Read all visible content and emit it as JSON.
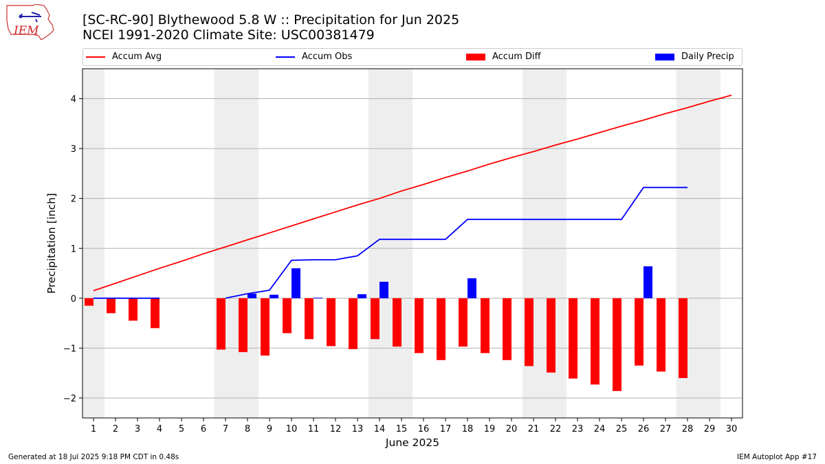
{
  "header": {
    "title_line1": "[SC-RC-90] Blythewood 5.8 W :: Precipitation for Jun 2025",
    "title_line2": "NCEI 1991-2020 Climate Site: USC00381479",
    "logo_text": "IEM"
  },
  "footer": {
    "left": "Generated at 18 Jul 2025 9:18 PM CDT in 0.48s",
    "right": "IEM Autoplot App #17"
  },
  "legend": [
    {
      "name": "Accum Avg",
      "kind": "line",
      "color": "#ff0000"
    },
    {
      "name": "Accum Obs",
      "kind": "line",
      "color": "#0000ff"
    },
    {
      "name": "Accum Diff",
      "kind": "bar",
      "color": "#ff0000"
    },
    {
      "name": "Daily Precip",
      "kind": "bar",
      "color": "#0000ff"
    }
  ],
  "chart_data": {
    "type": "bar",
    "xlabel": "June 2025",
    "ylabel": "Precipitation [inch]",
    "xlim": [
      0.5,
      30.5
    ],
    "ylim": [
      -2.4,
      4.6
    ],
    "yticks": [
      -2,
      -1,
      0,
      1,
      2,
      3,
      4
    ],
    "ytick_labels": [
      "−2",
      "−1",
      "0",
      "1",
      "2",
      "3",
      "4"
    ],
    "days": [
      1,
      2,
      3,
      4,
      5,
      6,
      7,
      8,
      9,
      10,
      11,
      12,
      13,
      14,
      15,
      16,
      17,
      18,
      19,
      20,
      21,
      22,
      23,
      24,
      25,
      26,
      27,
      28,
      29,
      30
    ],
    "weekend_bands": [
      [
        0.5,
        1.5
      ],
      [
        6.5,
        8.5
      ],
      [
        13.5,
        15.5
      ],
      [
        20.5,
        22.5
      ],
      [
        27.5,
        29.5
      ]
    ],
    "grid": "horizontal",
    "legend_position": "top",
    "colors": {
      "avg": "#ff0000",
      "obs": "#0000ff",
      "diff": "#ff0000",
      "daily": "#0000ff",
      "band": "#eeeeee",
      "grid": "#b0b0b0"
    },
    "series": [
      {
        "name": "Accum Avg",
        "kind": "line",
        "x": [
          1,
          2,
          3,
          4,
          5,
          6,
          7,
          8,
          9,
          10,
          11,
          12,
          13,
          14,
          15,
          16,
          17,
          18,
          19,
          20,
          21,
          22,
          23,
          24,
          25,
          26,
          27,
          28,
          29,
          30
        ],
        "values": [
          0.15,
          0.3,
          0.45,
          0.6,
          0.74,
          0.89,
          1.03,
          1.17,
          1.31,
          1.45,
          1.59,
          1.73,
          1.87,
          2.0,
          2.15,
          2.28,
          2.42,
          2.55,
          2.69,
          2.82,
          2.94,
          3.07,
          3.19,
          3.32,
          3.45,
          3.57,
          3.7,
          3.82,
          3.95,
          4.07
        ]
      },
      {
        "name": "Accum Obs",
        "kind": "line",
        "x": [
          1,
          2,
          3,
          4,
          7,
          8,
          9,
          10,
          11,
          12,
          13,
          14,
          15,
          16,
          17,
          18,
          19,
          20,
          21,
          22,
          23,
          24,
          25,
          26,
          27,
          28
        ],
        "values": [
          0,
          0,
          0,
          0,
          0,
          0.09,
          0.16,
          0.76,
          0.77,
          0.77,
          0.85,
          1.18,
          1.18,
          1.18,
          1.18,
          1.58,
          1.58,
          1.58,
          1.58,
          1.58,
          1.58,
          1.58,
          1.58,
          2.22,
          2.22,
          2.22
        ]
      },
      {
        "name": "Accum Diff",
        "kind": "bar",
        "x": [
          1,
          2,
          3,
          4,
          7,
          8,
          9,
          10,
          11,
          12,
          13,
          14,
          15,
          16,
          17,
          18,
          19,
          20,
          21,
          22,
          23,
          24,
          25,
          26,
          27,
          28
        ],
        "values": [
          -0.15,
          -0.3,
          -0.45,
          -0.6,
          -1.03,
          -1.08,
          -1.15,
          -0.7,
          -0.82,
          -0.96,
          -1.02,
          -0.82,
          -0.97,
          -1.1,
          -1.24,
          -0.97,
          -1.1,
          -1.24,
          -1.36,
          -1.49,
          -1.61,
          -1.73,
          -1.86,
          -1.35,
          -1.47,
          -1.6
        ]
      },
      {
        "name": "Daily Precip",
        "kind": "bar",
        "x": [
          8,
          9,
          10,
          11,
          13,
          14,
          18,
          26
        ],
        "values": [
          0.09,
          0.07,
          0.6,
          0.01,
          0.08,
          0.33,
          0.4,
          0.64
        ]
      }
    ]
  }
}
